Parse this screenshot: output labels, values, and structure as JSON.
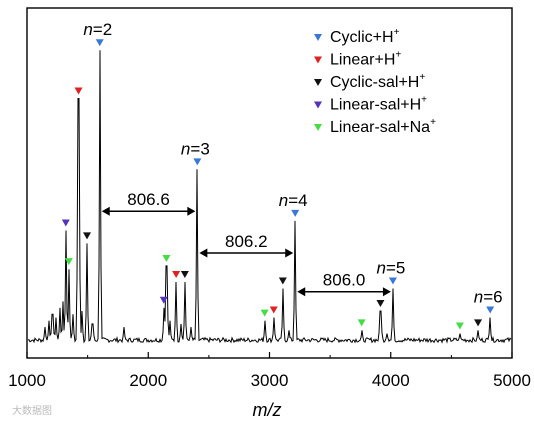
{
  "chart_data": {
    "type": "line",
    "title": "",
    "xlabel": "m/z",
    "ylabel": "",
    "xlim": [
      1000,
      5000
    ],
    "ylim": [
      0,
      100
    ],
    "xticks": [
      1000,
      2000,
      3000,
      4000,
      5000
    ],
    "xtick_labels": [
      "1000",
      "2000",
      "3000",
      "4000",
      "5000"
    ],
    "grid": false,
    "legend_position": "top-right",
    "colors": {
      "Cyclic+H+": "#3a78d8",
      "Linear+H+": "#dd2222",
      "Cyclic-sal+H+": "#111111",
      "Linear-sal+H+": "#5533bb",
      "Linear-sal+Na+": "#44dd44"
    },
    "series": [
      {
        "name": "Cyclic+H+",
        "legend_base": "Cyclic+H",
        "legend_sup": "+",
        "x": [
          1600,
          2405,
          3212,
          4018,
          4820
        ],
        "y": [
          90,
          53,
          37,
          16,
          7
        ]
      },
      {
        "name": "Linear+H+",
        "legend_base": "Linear+H",
        "legend_sup": "+",
        "x": [
          1425,
          2230,
          3035
        ],
        "y": [
          75,
          18,
          7
        ]
      },
      {
        "name": "Cyclic-sal+H+",
        "legend_base": "Cyclic-sal+H",
        "legend_sup": "+",
        "x": [
          1495,
          2302,
          3110,
          3915,
          4720
        ],
        "y": [
          30,
          18,
          16,
          9,
          3
        ]
      },
      {
        "name": "Linear-sal+H+",
        "legend_base": "Linear-sal+H",
        "legend_sup": "+",
        "x": [
          1320,
          2128
        ],
        "y": [
          34,
          10
        ]
      },
      {
        "name": "Linear-sal+Na+",
        "legend_base": "Linear-sal+Na",
        "legend_sup": "+",
        "x": [
          1345,
          2150,
          2960,
          3760,
          4570
        ],
        "y": [
          22,
          23,
          6,
          3,
          2
        ]
      }
    ],
    "peaks": [
      {
        "x": 1320,
        "y": 34
      },
      {
        "x": 1345,
        "y": 22
      },
      {
        "x": 1425,
        "y": 75
      },
      {
        "x": 1495,
        "y": 30
      },
      {
        "x": 1600,
        "y": 90
      },
      {
        "x": 2128,
        "y": 10
      },
      {
        "x": 2150,
        "y": 23
      },
      {
        "x": 2230,
        "y": 18
      },
      {
        "x": 2302,
        "y": 18
      },
      {
        "x": 2405,
        "y": 53
      },
      {
        "x": 2960,
        "y": 6
      },
      {
        "x": 3035,
        "y": 7
      },
      {
        "x": 3110,
        "y": 16
      },
      {
        "x": 3212,
        "y": 37
      },
      {
        "x": 3760,
        "y": 3
      },
      {
        "x": 3915,
        "y": 9
      },
      {
        "x": 4018,
        "y": 16
      },
      {
        "x": 4570,
        "y": 2
      },
      {
        "x": 4720,
        "y": 3
      },
      {
        "x": 4820,
        "y": 7
      },
      {
        "x": 1150,
        "y": 4
      },
      {
        "x": 1180,
        "y": 6
      },
      {
        "x": 1210,
        "y": 8
      },
      {
        "x": 1240,
        "y": 7
      },
      {
        "x": 1270,
        "y": 10
      },
      {
        "x": 1295,
        "y": 12
      },
      {
        "x": 1380,
        "y": 8
      },
      {
        "x": 1455,
        "y": 9
      },
      {
        "x": 1540,
        "y": 5
      },
      {
        "x": 1800,
        "y": 4
      },
      {
        "x": 2180,
        "y": 6
      },
      {
        "x": 2270,
        "y": 5
      },
      {
        "x": 2350,
        "y": 4
      },
      {
        "x": 3160,
        "y": 3
      },
      {
        "x": 3970,
        "y": 2
      }
    ],
    "annotations": [
      {
        "text": "n=2",
        "x": 1600,
        "y": 90
      },
      {
        "text": "n=3",
        "x": 2405,
        "y": 53
      },
      {
        "text": "n=4",
        "x": 3212,
        "y": 37
      },
      {
        "text": "n=5",
        "x": 4018,
        "y": 16
      },
      {
        "text": "n=6",
        "x": 4820,
        "y": 7
      }
    ],
    "spacings": [
      {
        "text": "806.6",
        "x1": 1600,
        "x2": 2405,
        "y": 40
      },
      {
        "text": "806.2",
        "x1": 2405,
        "x2": 3212,
        "y": 27
      },
      {
        "text": "806.0",
        "x1": 3212,
        "x2": 4018,
        "y": 15
      }
    ]
  },
  "watermark": "大数据图"
}
